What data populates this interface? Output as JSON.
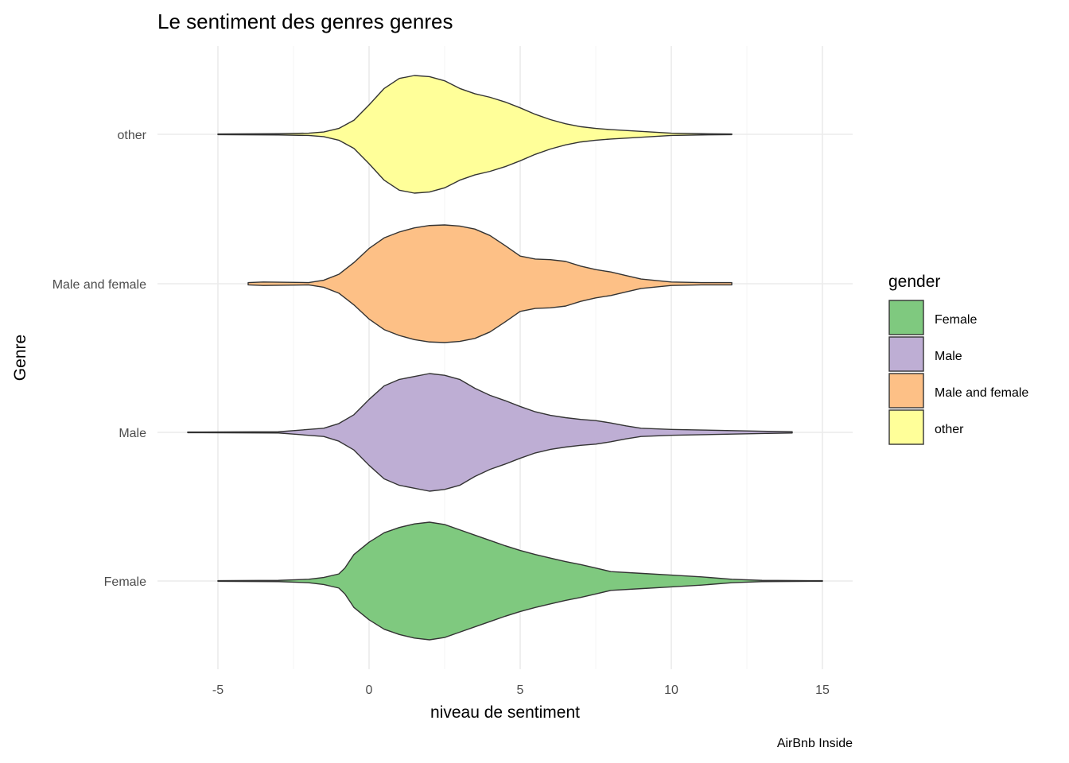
{
  "chart_data": {
    "type": "violin",
    "title": "Le sentiment des genres genres",
    "xlabel": "niveau de sentiment",
    "ylabel": "Genre",
    "caption": "AirBnb Inside",
    "xlim": [
      -7,
      16
    ],
    "x_ticks": [
      -5,
      0,
      5,
      10,
      15
    ],
    "categories": [
      "Female",
      "Male",
      "Male and female",
      "other"
    ],
    "grid": true,
    "legend": {
      "title": "gender",
      "position": "right",
      "items": [
        {
          "label": "Female",
          "color": "#7fc97f"
        },
        {
          "label": "Male",
          "color": "#beaed4"
        },
        {
          "label": "Male and female",
          "color": "#fdc086"
        },
        {
          "label": "other",
          "color": "#ffff99"
        }
      ]
    },
    "series": [
      {
        "name": "Female",
        "color": "#7fc97f",
        "range": [
          -5,
          15
        ],
        "density": [
          [
            -5,
            0.005
          ],
          [
            -3,
            0.01
          ],
          [
            -2,
            0.03
          ],
          [
            -1.5,
            0.06
          ],
          [
            -1,
            0.12
          ],
          [
            -0.8,
            0.22
          ],
          [
            -0.5,
            0.45
          ],
          [
            0,
            0.66
          ],
          [
            0.5,
            0.82
          ],
          [
            1,
            0.91
          ],
          [
            1.5,
            0.97
          ],
          [
            2,
            1.0
          ],
          [
            2.5,
            0.96
          ],
          [
            3,
            0.87
          ],
          [
            3.5,
            0.78
          ],
          [
            4,
            0.69
          ],
          [
            4.5,
            0.6
          ],
          [
            5,
            0.52
          ],
          [
            5.5,
            0.45
          ],
          [
            6,
            0.39
          ],
          [
            6.5,
            0.33
          ],
          [
            7,
            0.28
          ],
          [
            7.5,
            0.22
          ],
          [
            8,
            0.16
          ],
          [
            9,
            0.13
          ],
          [
            10,
            0.1
          ],
          [
            11,
            0.07
          ],
          [
            12,
            0.03
          ],
          [
            13,
            0.01
          ],
          [
            15,
            0.005
          ]
        ]
      },
      {
        "name": "Male",
        "color": "#beaed4",
        "range": [
          -6,
          14
        ],
        "density": [
          [
            -6,
            0.005
          ],
          [
            -3,
            0.01
          ],
          [
            -2.5,
            0.03
          ],
          [
            -1.5,
            0.07
          ],
          [
            -1,
            0.15
          ],
          [
            -0.5,
            0.3
          ],
          [
            0,
            0.56
          ],
          [
            0.5,
            0.79
          ],
          [
            1,
            0.9
          ],
          [
            1.5,
            0.95
          ],
          [
            2,
            1.0
          ],
          [
            2.5,
            0.97
          ],
          [
            3,
            0.9
          ],
          [
            3.5,
            0.75
          ],
          [
            4,
            0.63
          ],
          [
            4.5,
            0.54
          ],
          [
            5,
            0.44
          ],
          [
            5.5,
            0.35
          ],
          [
            6,
            0.29
          ],
          [
            6.5,
            0.25
          ],
          [
            7,
            0.22
          ],
          [
            7.5,
            0.2
          ],
          [
            8,
            0.16
          ],
          [
            8.5,
            0.11
          ],
          [
            9,
            0.07
          ],
          [
            10,
            0.05
          ],
          [
            11,
            0.04
          ],
          [
            12,
            0.03
          ],
          [
            13,
            0.02
          ],
          [
            14,
            0.01
          ]
        ]
      },
      {
        "name": "Male and female",
        "color": "#fdc086",
        "range": [
          -4,
          12
        ],
        "density": [
          [
            -4,
            0.02
          ],
          [
            -3.5,
            0.03
          ],
          [
            -2,
            0.02
          ],
          [
            -1.5,
            0.06
          ],
          [
            -1,
            0.16
          ],
          [
            -0.5,
            0.36
          ],
          [
            0,
            0.6
          ],
          [
            0.5,
            0.78
          ],
          [
            1,
            0.88
          ],
          [
            1.5,
            0.95
          ],
          [
            2,
            0.99
          ],
          [
            2.5,
            1.0
          ],
          [
            3,
            0.98
          ],
          [
            3.5,
            0.93
          ],
          [
            4,
            0.82
          ],
          [
            4.5,
            0.65
          ],
          [
            5,
            0.47
          ],
          [
            5.5,
            0.42
          ],
          [
            6,
            0.41
          ],
          [
            6.5,
            0.38
          ],
          [
            7,
            0.3
          ],
          [
            7.5,
            0.24
          ],
          [
            8,
            0.2
          ],
          [
            8.5,
            0.14
          ],
          [
            9,
            0.08
          ],
          [
            10,
            0.03
          ],
          [
            11,
            0.02
          ],
          [
            12,
            0.02
          ]
        ]
      },
      {
        "name": "other",
        "color": "#ffff99",
        "range": [
          -5,
          12
        ],
        "density": [
          [
            -5,
            0.005
          ],
          [
            -3,
            0.01
          ],
          [
            -2,
            0.02
          ],
          [
            -1.5,
            0.04
          ],
          [
            -1,
            0.1
          ],
          [
            -0.5,
            0.24
          ],
          [
            0,
            0.5
          ],
          [
            0.5,
            0.78
          ],
          [
            1,
            0.95
          ],
          [
            1.5,
            1.0
          ],
          [
            2,
            0.98
          ],
          [
            2.5,
            0.91
          ],
          [
            3,
            0.78
          ],
          [
            3.5,
            0.69
          ],
          [
            4,
            0.63
          ],
          [
            4.5,
            0.55
          ],
          [
            5,
            0.45
          ],
          [
            5.5,
            0.34
          ],
          [
            6,
            0.25
          ],
          [
            6.5,
            0.18
          ],
          [
            7,
            0.13
          ],
          [
            7.5,
            0.1
          ],
          [
            8,
            0.08
          ],
          [
            9,
            0.05
          ],
          [
            10,
            0.02
          ],
          [
            11,
            0.01
          ],
          [
            12,
            0.005
          ]
        ]
      }
    ]
  }
}
